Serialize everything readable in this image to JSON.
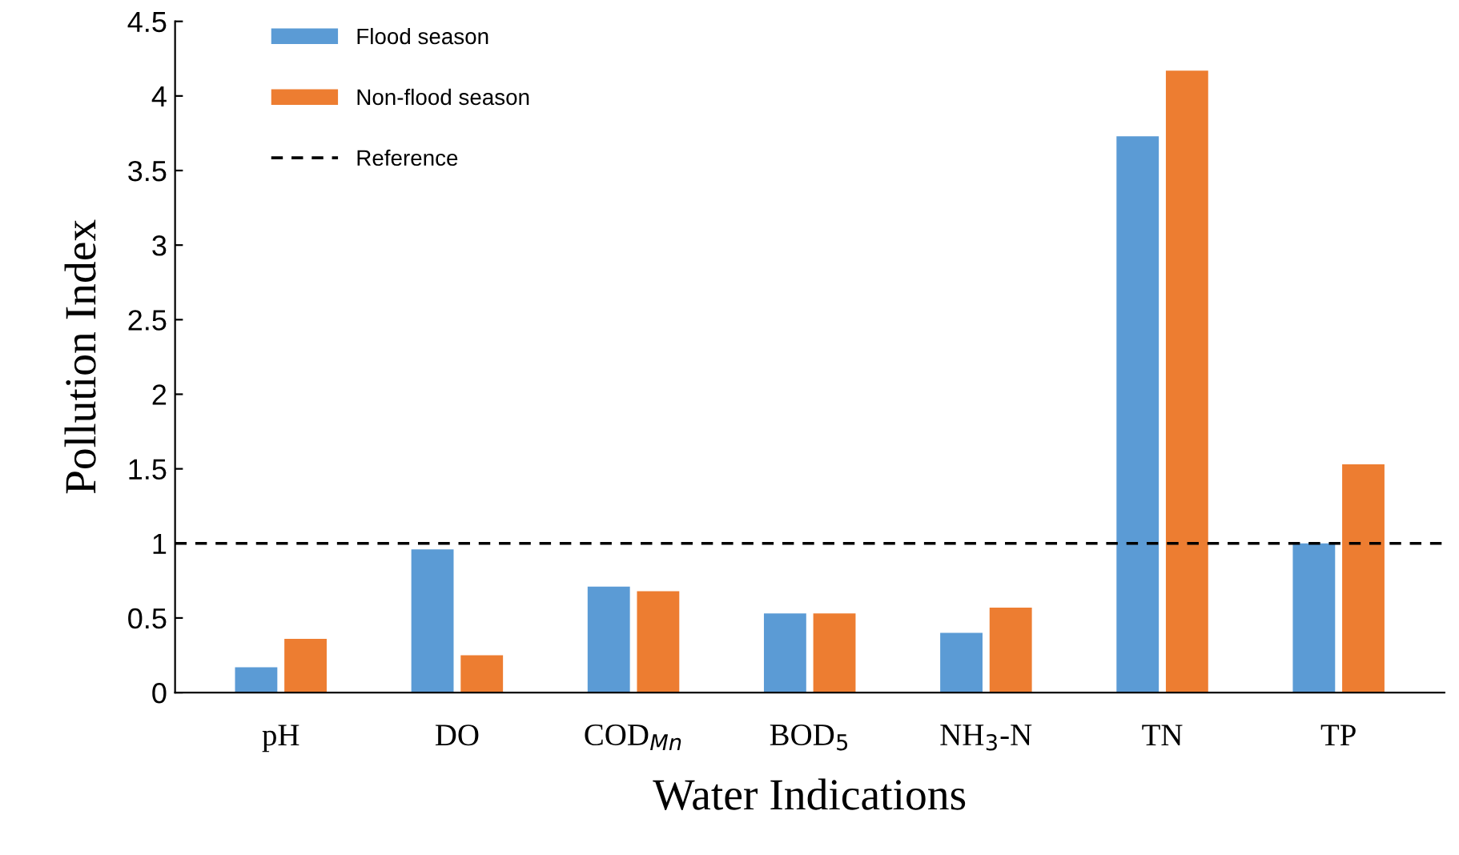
{
  "chart_data": {
    "type": "bar",
    "xlabel": "Water Indications",
    "ylabel": "Pollution Index",
    "categories": [
      "pH",
      "DO",
      "COD$_{Mn}$",
      "BOD$_{5}$",
      "NH$_{3}$-N",
      "TN",
      "TP"
    ],
    "series": [
      {
        "name": "Flood season",
        "color": "#5b9bd5",
        "values": [
          0.17,
          0.96,
          0.71,
          0.53,
          0.4,
          3.73,
          1.0
        ]
      },
      {
        "name": "Non-flood season",
        "color": "#ed7d31",
        "values": [
          0.36,
          0.25,
          0.68,
          0.53,
          0.57,
          4.17,
          1.53
        ]
      }
    ],
    "ref_lines": [
      {
        "axis": "y",
        "value": 1,
        "label": "Reference",
        "color": "#000000",
        "line_style": "dashed"
      }
    ],
    "ylim": [
      0,
      4.5
    ],
    "yticks": [
      0,
      0.5,
      1,
      1.5,
      2,
      2.5,
      3,
      3.5,
      4,
      4.5
    ],
    "grid": false,
    "legend": "top left"
  }
}
